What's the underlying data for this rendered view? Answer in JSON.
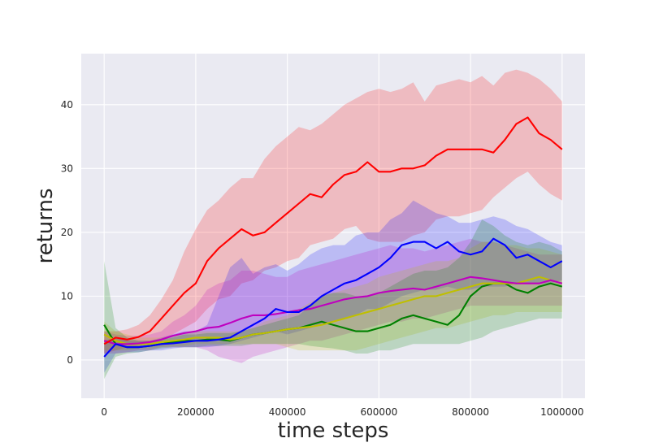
{
  "chart_data": {
    "type": "line",
    "title": "",
    "xlabel": "time steps",
    "ylabel": "returns",
    "xlim": [
      -50000,
      1050000
    ],
    "ylim": [
      -6,
      48
    ],
    "xticks": [
      0,
      200000,
      400000,
      600000,
      800000,
      1000000
    ],
    "yticks": [
      0,
      10,
      20,
      30,
      40
    ],
    "grid": true,
    "background": "#eaeaf2",
    "series": [
      {
        "color": "#ff0000",
        "x": [
          0,
          25000,
          50000,
          75000,
          100000,
          125000,
          150000,
          175000,
          200000,
          225000,
          250000,
          275000,
          300000,
          325000,
          350000,
          375000,
          400000,
          425000,
          450000,
          475000,
          500000,
          525000,
          550000,
          575000,
          600000,
          625000,
          650000,
          675000,
          700000,
          725000,
          750000,
          775000,
          800000,
          825000,
          850000,
          875000,
          900000,
          925000,
          950000,
          975000,
          1000000
        ],
        "y": [
          2.5,
          3.5,
          3.2,
          3.6,
          4.5,
          6.5,
          8.5,
          10.5,
          12.0,
          15.5,
          17.5,
          19.0,
          20.5,
          19.5,
          20.0,
          21.5,
          23.0,
          24.5,
          26.0,
          25.5,
          27.5,
          29.0,
          29.5,
          31.0,
          29.5,
          29.5,
          30.0,
          30.0,
          30.5,
          32.0,
          33.0,
          33.0,
          33.0,
          33.0,
          32.5,
          34.5,
          37.0,
          38.0,
          35.5,
          34.5,
          33.0
        ],
        "lower": [
          1.0,
          1.5,
          2.0,
          2.2,
          2.5,
          3.0,
          4.0,
          5.0,
          6.0,
          8.0,
          9.5,
          10.0,
          12.0,
          12.5,
          14.0,
          14.5,
          15.5,
          16.0,
          18.0,
          18.5,
          19.0,
          20.5,
          21.0,
          19.0,
          18.5,
          18.5,
          18.5,
          19.5,
          20.0,
          22.0,
          22.5,
          22.5,
          23.0,
          23.5,
          25.5,
          27.0,
          28.5,
          29.5,
          27.5,
          26.0,
          25.0
        ],
        "upper": [
          4.5,
          4.5,
          4.8,
          5.5,
          7.0,
          9.5,
          12.5,
          17.0,
          20.5,
          23.5,
          25.0,
          27.0,
          28.5,
          28.5,
          31.5,
          33.5,
          35.0,
          36.5,
          36.0,
          37.0,
          38.5,
          40.0,
          41.0,
          42.0,
          42.5,
          42.0,
          42.5,
          43.5,
          40.5,
          43.0,
          43.5,
          44.0,
          43.5,
          44.5,
          43.0,
          45.0,
          45.5,
          45.0,
          44.0,
          42.5,
          40.5
        ]
      },
      {
        "color": "#0000ff",
        "x": [
          0,
          25000,
          50000,
          75000,
          100000,
          125000,
          150000,
          175000,
          200000,
          225000,
          250000,
          275000,
          300000,
          325000,
          350000,
          375000,
          400000,
          425000,
          450000,
          475000,
          500000,
          525000,
          550000,
          575000,
          600000,
          625000,
          650000,
          675000,
          700000,
          725000,
          750000,
          775000,
          800000,
          825000,
          850000,
          875000,
          900000,
          925000,
          950000,
          975000,
          1000000
        ],
        "y": [
          0.5,
          2.5,
          2.0,
          2.0,
          2.2,
          2.5,
          2.6,
          2.8,
          3.0,
          3.0,
          3.2,
          3.5,
          4.5,
          5.5,
          6.5,
          8.0,
          7.5,
          7.5,
          8.5,
          10.0,
          11.0,
          12.0,
          12.5,
          13.5,
          14.5,
          16.0,
          18.0,
          18.5,
          18.5,
          17.5,
          18.5,
          17.0,
          16.5,
          17.0,
          19.0,
          18.0,
          16.0,
          16.5,
          15.5,
          14.5,
          15.5
        ],
        "lower": [
          -2.0,
          1.0,
          1.2,
          1.2,
          1.5,
          1.5,
          1.8,
          2.0,
          2.0,
          2.0,
          2.2,
          2.5,
          3.0,
          3.5,
          4.0,
          4.5,
          4.0,
          4.5,
          5.0,
          5.5,
          6.0,
          6.5,
          7.0,
          8.0,
          8.0,
          9.0,
          10.0,
          10.5,
          11.0,
          11.0,
          11.5,
          11.0,
          11.0,
          11.5,
          11.5,
          11.5,
          12.0,
          12.0,
          12.0,
          12.0,
          12.5
        ],
        "upper": [
          3.0,
          3.5,
          3.0,
          3.0,
          3.0,
          3.5,
          4.0,
          4.5,
          4.5,
          5.5,
          10.0,
          14.5,
          16.0,
          13.5,
          14.5,
          15.0,
          14.0,
          15.0,
          16.5,
          17.5,
          18.0,
          18.0,
          19.5,
          20.0,
          20.0,
          22.0,
          23.0,
          25.0,
          24.0,
          23.0,
          22.5,
          21.5,
          21.5,
          22.0,
          22.5,
          22.0,
          21.0,
          20.5,
          19.5,
          18.5,
          18.0
        ]
      },
      {
        "color": "#bf00bf",
        "x": [
          0,
          25000,
          50000,
          75000,
          100000,
          125000,
          150000,
          175000,
          200000,
          225000,
          250000,
          275000,
          300000,
          325000,
          350000,
          375000,
          400000,
          425000,
          450000,
          475000,
          500000,
          525000,
          550000,
          575000,
          600000,
          625000,
          650000,
          675000,
          700000,
          725000,
          750000,
          775000,
          800000,
          825000,
          850000,
          875000,
          900000,
          925000,
          950000,
          975000,
          1000000
        ],
        "y": [
          3.0,
          2.5,
          2.5,
          2.6,
          2.8,
          3.2,
          3.8,
          4.2,
          4.5,
          5.0,
          5.2,
          5.8,
          6.5,
          7.0,
          7.0,
          7.2,
          7.5,
          7.8,
          8.0,
          8.5,
          9.0,
          9.5,
          9.8,
          10.0,
          10.5,
          10.8,
          11.0,
          11.2,
          11.0,
          11.5,
          12.0,
          12.5,
          13.0,
          12.8,
          12.5,
          12.2,
          12.0,
          12.0,
          12.0,
          12.5,
          12.0
        ],
        "lower": [
          1.0,
          1.0,
          1.2,
          1.5,
          1.5,
          2.0,
          2.0,
          2.0,
          2.0,
          1.5,
          0.5,
          0.0,
          -0.5,
          0.5,
          1.0,
          1.5,
          2.0,
          2.5,
          3.0,
          3.0,
          3.5,
          4.0,
          4.5,
          5.0,
          5.5,
          6.0,
          6.0,
          6.5,
          6.5,
          7.0,
          7.5,
          8.0,
          8.5,
          8.5,
          8.5,
          8.5,
          8.5,
          8.5,
          8.5,
          8.5,
          8.5
        ],
        "upper": [
          4.5,
          4.0,
          3.8,
          3.8,
          4.0,
          4.5,
          6.0,
          7.0,
          8.5,
          11.0,
          12.0,
          12.5,
          14.0,
          14.0,
          13.5,
          13.0,
          13.0,
          14.0,
          14.5,
          15.0,
          15.5,
          16.0,
          16.5,
          17.0,
          17.5,
          18.0,
          17.5,
          17.5,
          17.0,
          17.5,
          18.0,
          18.5,
          19.0,
          18.5,
          18.5,
          18.0,
          17.5,
          17.0,
          16.5,
          16.5,
          16.5
        ]
      },
      {
        "color": "#bfbf00",
        "x": [
          0,
          25000,
          50000,
          75000,
          100000,
          125000,
          150000,
          175000,
          200000,
          225000,
          250000,
          275000,
          300000,
          325000,
          350000,
          375000,
          400000,
          425000,
          450000,
          475000,
          500000,
          525000,
          550000,
          575000,
          600000,
          625000,
          650000,
          675000,
          700000,
          725000,
          750000,
          775000,
          800000,
          825000,
          850000,
          875000,
          900000,
          925000,
          950000,
          975000,
          1000000
        ],
        "y": [
          4.0,
          3.0,
          2.5,
          2.5,
          2.5,
          2.8,
          3.0,
          3.2,
          3.5,
          3.5,
          3.5,
          3.2,
          3.5,
          4.0,
          4.2,
          4.5,
          4.8,
          5.0,
          5.2,
          5.5,
          6.0,
          6.5,
          7.0,
          7.5,
          8.0,
          8.5,
          9.0,
          9.5,
          10.0,
          10.0,
          10.5,
          11.0,
          11.5,
          12.0,
          12.0,
          12.0,
          12.0,
          12.5,
          13.0,
          12.5,
          12.0
        ],
        "lower": [
          1.5,
          1.5,
          1.5,
          1.8,
          1.8,
          2.0,
          2.2,
          2.2,
          2.5,
          2.5,
          2.5,
          2.5,
          2.5,
          2.5,
          2.5,
          2.5,
          2.0,
          1.5,
          1.5,
          1.5,
          1.5,
          1.5,
          1.5,
          2.0,
          2.5,
          3.0,
          3.5,
          4.0,
          4.5,
          5.0,
          5.0,
          5.5,
          6.0,
          6.5,
          7.0,
          7.0,
          7.5,
          7.5,
          7.5,
          7.5,
          7.5
        ],
        "upper": [
          6.0,
          4.5,
          4.0,
          3.5,
          3.5,
          3.5,
          3.8,
          4.0,
          4.5,
          4.5,
          4.5,
          4.5,
          4.5,
          5.0,
          6.0,
          6.5,
          7.0,
          8.0,
          9.0,
          10.0,
          10.5,
          11.0,
          11.5,
          12.0,
          13.0,
          13.5,
          14.0,
          14.5,
          15.0,
          15.5,
          15.5,
          16.0,
          17.5,
          18.5,
          18.5,
          18.0,
          18.0,
          17.5,
          17.5,
          17.0,
          16.5
        ]
      },
      {
        "color": "#008000",
        "x": [
          0,
          25000,
          50000,
          75000,
          100000,
          125000,
          150000,
          175000,
          200000,
          225000,
          250000,
          275000,
          300000,
          325000,
          350000,
          375000,
          400000,
          425000,
          450000,
          475000,
          500000,
          525000,
          550000,
          575000,
          600000,
          625000,
          650000,
          675000,
          700000,
          725000,
          750000,
          775000,
          800000,
          825000,
          850000,
          875000,
          900000,
          925000,
          950000,
          975000,
          1000000
        ],
        "y": [
          5.5,
          2.5,
          2.0,
          2.0,
          2.2,
          2.5,
          2.8,
          3.0,
          3.0,
          3.2,
          3.2,
          3.0,
          3.5,
          4.0,
          4.2,
          4.5,
          4.8,
          5.0,
          5.5,
          6.0,
          5.5,
          5.0,
          4.5,
          4.5,
          5.0,
          5.5,
          6.5,
          7.0,
          6.5,
          6.0,
          5.5,
          7.0,
          10.0,
          11.5,
          12.0,
          12.0,
          11.0,
          10.5,
          11.5,
          12.0,
          11.5
        ],
        "lower": [
          -3.0,
          0.5,
          1.0,
          1.2,
          1.5,
          1.8,
          2.0,
          2.0,
          2.0,
          2.2,
          2.2,
          2.2,
          2.2,
          2.5,
          2.5,
          2.5,
          2.5,
          2.5,
          2.2,
          2.0,
          1.8,
          1.5,
          1.0,
          1.0,
          1.5,
          1.5,
          2.0,
          2.5,
          2.5,
          2.5,
          2.5,
          2.5,
          3.0,
          3.5,
          4.5,
          5.0,
          5.5,
          6.0,
          6.5,
          6.5,
          6.5
        ],
        "upper": [
          15.5,
          5.0,
          3.5,
          3.0,
          3.0,
          3.2,
          3.5,
          4.0,
          4.0,
          4.2,
          4.2,
          4.2,
          4.5,
          5.0,
          5.5,
          6.0,
          6.5,
          7.0,
          8.5,
          10.0,
          10.5,
          10.5,
          10.0,
          10.0,
          10.5,
          11.5,
          12.5,
          13.5,
          14.0,
          14.0,
          14.5,
          16.0,
          18.5,
          22.0,
          21.0,
          19.5,
          18.5,
          18.0,
          18.5,
          18.0,
          17.0
        ]
      }
    ]
  }
}
